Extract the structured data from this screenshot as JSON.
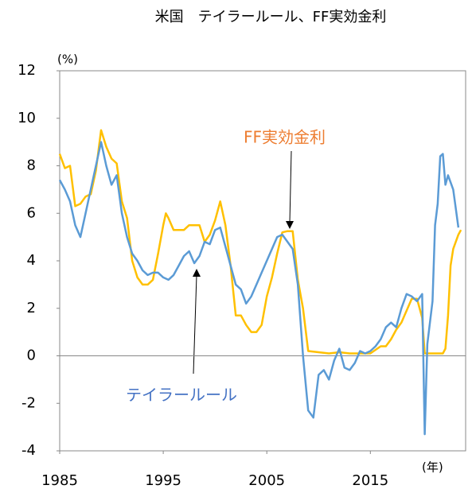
{
  "chart_data": {
    "type": "line",
    "title": "米国　テイラールール、FF実効金利",
    "y_unit": "(%)",
    "x_unit": "(年)",
    "xlim": [
      1985,
      2024.2
    ],
    "xticks": [
      1985,
      1995,
      2005,
      2015
    ],
    "ylim": [
      -4,
      12
    ],
    "yticks": [
      -4,
      -2,
      0,
      2,
      4,
      6,
      8,
      10,
      12
    ],
    "grid": false,
    "annotations": [
      "FF実効金利",
      "テイラールール"
    ],
    "series": [
      {
        "name": "テイラールール",
        "color": "#5b9bd5",
        "x": [
          1985.0,
          1985.5,
          1986.0,
          1986.5,
          1987.0,
          1987.5,
          1988.0,
          1988.5,
          1989.0,
          1989.5,
          1990.0,
          1990.5,
          1991.0,
          1991.5,
          1992.0,
          1992.5,
          1993.0,
          1993.5,
          1994.0,
          1994.5,
          1995.0,
          1995.5,
          1996.0,
          1996.5,
          1997.0,
          1997.5,
          1998.0,
          1998.5,
          1999.0,
          1999.5,
          2000.0,
          2000.5,
          2001.0,
          2001.5,
          2002.0,
          2002.5,
          2003.0,
          2003.5,
          2004.0,
          2004.5,
          2005.0,
          2005.5,
          2006.0,
          2006.5,
          2007.0,
          2007.5,
          2008.0,
          2008.5,
          2009.0,
          2009.5,
          2010.0,
          2010.5,
          2011.0,
          2011.5,
          2012.0,
          2012.5,
          2013.0,
          2013.5,
          2014.0,
          2014.5,
          2015.0,
          2015.5,
          2016.0,
          2016.5,
          2017.0,
          2017.5,
          2018.0,
          2018.5,
          2019.0,
          2019.5,
          2020.0,
          2020.25,
          2020.5,
          2021.0,
          2021.25,
          2021.5,
          2021.75,
          2022.0,
          2022.25,
          2022.5,
          2023.0,
          2023.5
        ],
        "values": [
          7.4,
          7.0,
          6.5,
          5.5,
          5.0,
          6.0,
          7.0,
          8.0,
          9.0,
          8.0,
          7.2,
          7.6,
          6.0,
          5.0,
          4.3,
          4.0,
          3.6,
          3.4,
          3.5,
          3.5,
          3.3,
          3.2,
          3.4,
          3.8,
          4.2,
          4.4,
          3.9,
          4.2,
          4.8,
          4.7,
          5.3,
          5.4,
          4.6,
          3.8,
          3.0,
          2.8,
          2.2,
          2.5,
          3.0,
          3.5,
          4.0,
          4.5,
          5.0,
          5.1,
          4.8,
          4.5,
          3.0,
          0.0,
          -2.3,
          -2.6,
          -0.8,
          -0.6,
          -1.0,
          -0.2,
          0.3,
          -0.5,
          -0.6,
          -0.3,
          0.2,
          0.1,
          0.2,
          0.4,
          0.7,
          1.2,
          1.4,
          1.2,
          2.0,
          2.6,
          2.5,
          2.3,
          2.6,
          -3.3,
          0.5,
          2.3,
          5.5,
          6.4,
          8.4,
          8.5,
          7.2,
          7.6,
          7.0,
          5.4
        ]
      },
      {
        "name": "FF実効金利",
        "color": "#ffc000",
        "x": [
          1985.0,
          1985.5,
          1986.0,
          1986.5,
          1987.0,
          1987.5,
          1988.0,
          1988.5,
          1989.0,
          1989.5,
          1990.0,
          1990.5,
          1991.0,
          1991.5,
          1992.0,
          1992.5,
          1993.0,
          1993.5,
          1994.0,
          1994.5,
          1995.0,
          1995.25,
          1995.5,
          1996.0,
          1996.5,
          1997.0,
          1997.5,
          1998.0,
          1998.5,
          1999.0,
          1999.5,
          2000.0,
          2000.5,
          2001.0,
          2001.5,
          2002.0,
          2002.5,
          2003.0,
          2003.5,
          2004.0,
          2004.5,
          2005.0,
          2005.5,
          2006.0,
          2006.5,
          2007.0,
          2007.5,
          2008.0,
          2008.5,
          2009.0,
          2010.0,
          2011.0,
          2012.0,
          2013.0,
          2014.0,
          2015.0,
          2016.0,
          2016.5,
          2017.0,
          2017.5,
          2018.0,
          2018.5,
          2019.0,
          2019.5,
          2020.0,
          2020.25,
          2021.0,
          2022.0,
          2022.25,
          2022.5,
          2022.75,
          2023.0,
          2023.5,
          2023.75
        ],
        "values": [
          8.5,
          7.9,
          8.0,
          6.3,
          6.4,
          6.7,
          6.8,
          7.8,
          9.5,
          8.8,
          8.3,
          8.1,
          6.5,
          5.8,
          4.0,
          3.3,
          3.0,
          3.0,
          3.2,
          4.3,
          5.5,
          6.0,
          5.8,
          5.3,
          5.3,
          5.3,
          5.5,
          5.5,
          5.5,
          4.8,
          5.1,
          5.7,
          6.5,
          5.5,
          3.8,
          1.7,
          1.7,
          1.3,
          1.0,
          1.0,
          1.3,
          2.5,
          3.3,
          4.3,
          5.2,
          5.25,
          5.25,
          3.2,
          2.0,
          0.2,
          0.15,
          0.1,
          0.15,
          0.1,
          0.1,
          0.1,
          0.4,
          0.4,
          0.7,
          1.1,
          1.4,
          1.9,
          2.4,
          2.4,
          1.6,
          0.1,
          0.1,
          0.1,
          0.3,
          1.7,
          3.8,
          4.5,
          5.1,
          5.3
        ]
      }
    ]
  }
}
